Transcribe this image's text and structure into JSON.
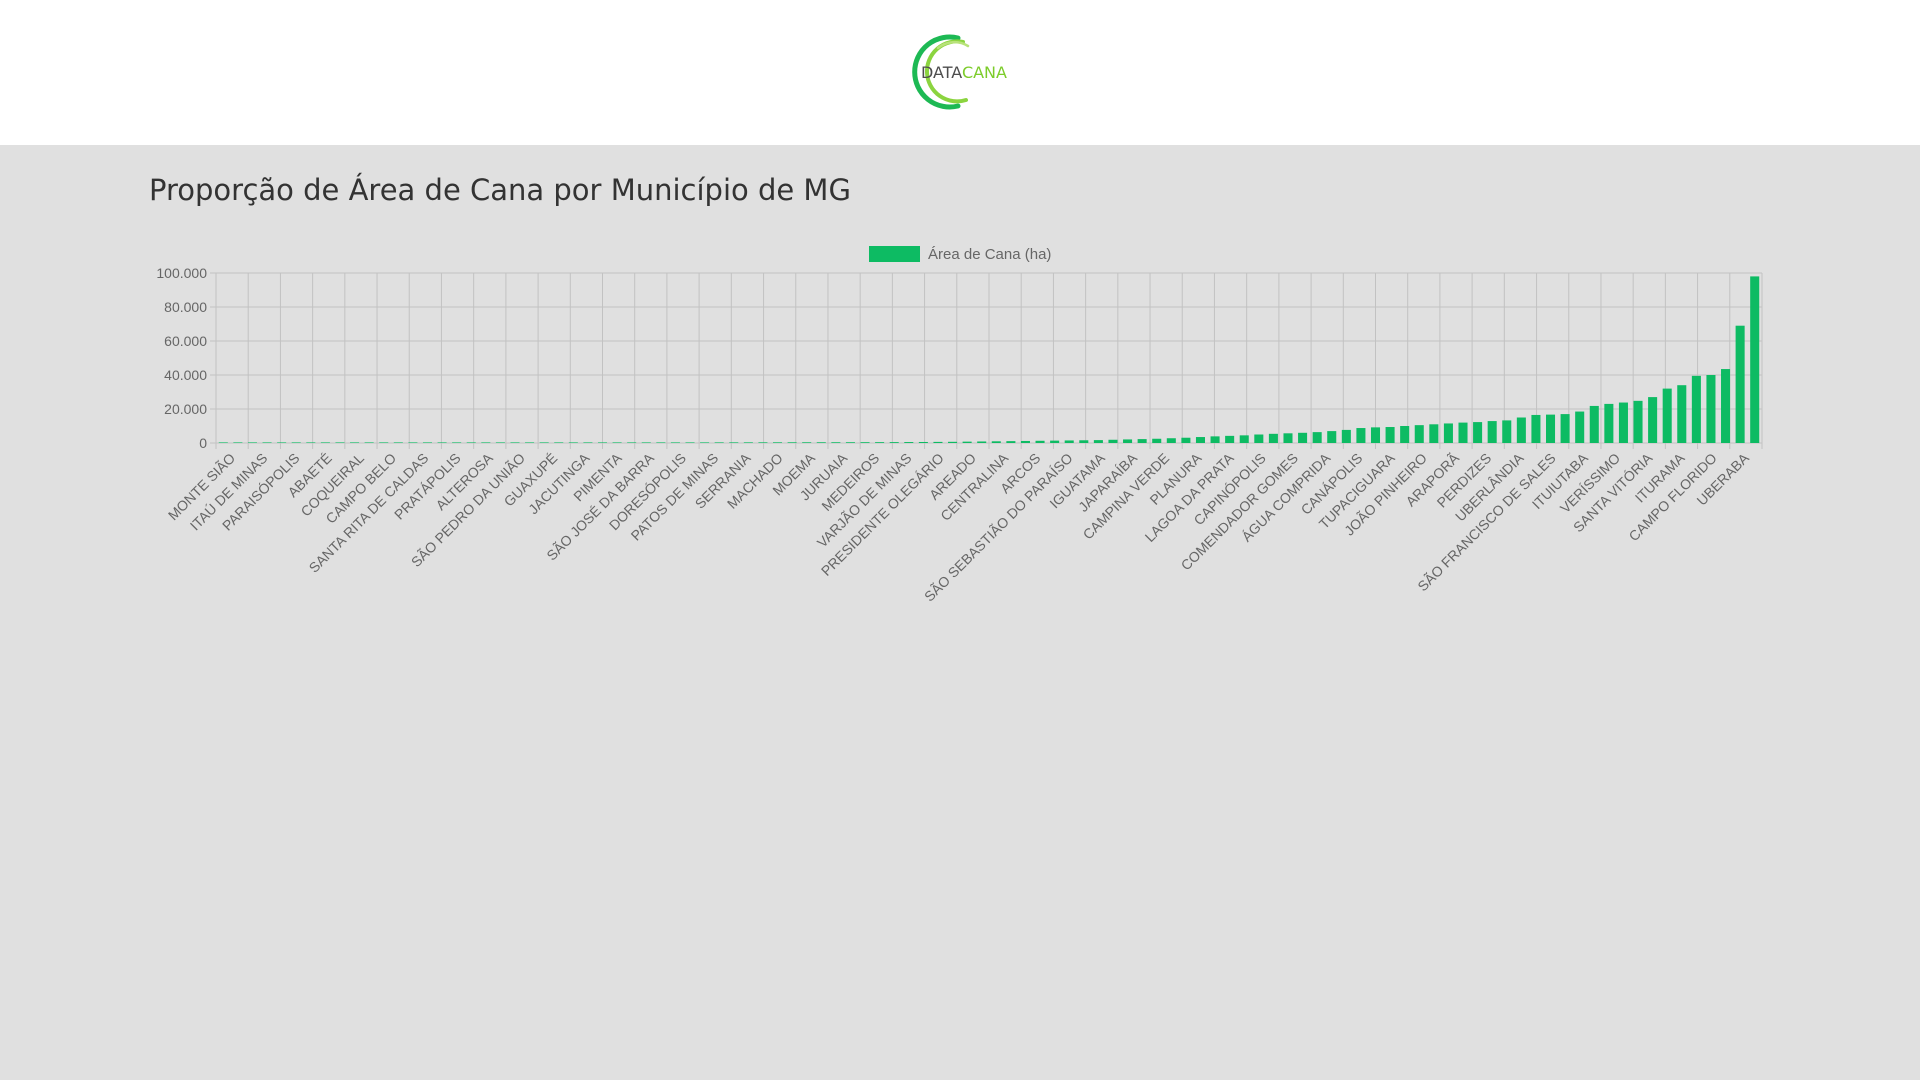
{
  "header": {
    "logo_text_1": "DATA",
    "logo_text_2": "CANA"
  },
  "page": {
    "title": "Proporção de Área de Cana por Município de MG"
  },
  "colors": {
    "bar": "#0dbb63",
    "logo_green_dark": "#1db954",
    "logo_green_light": "#8bd43f",
    "background": "#e0e0e0",
    "grid": "#c2c2c2",
    "axis_text": "#666666"
  },
  "chart_data": {
    "type": "bar",
    "legend": {
      "label": "Área de Cana (ha)",
      "position": "top"
    },
    "ylim": [
      0,
      100000
    ],
    "yticks": [
      0,
      20000,
      40000,
      60000,
      80000,
      100000
    ],
    "ytick_labels": [
      "0",
      "20.000",
      "40.000",
      "60.000",
      "80.000",
      "100.000"
    ],
    "grid": true,
    "labels_shown": [
      "MONTE SIÃO",
      "ITAÚ DE MINAS",
      "PARAISÓPOLIS",
      "ABAETÉ",
      "COQUEIRAL",
      "CAMPO BELO",
      "SANTA RITA DE CALDAS",
      "PRATÁPOLIS",
      "ALTEROSA",
      "SÃO PEDRO DA UNIÃO",
      "GUAXUPÉ",
      "JACUTINGA",
      "PIMENTA",
      "SÃO JOSÉ DA BARRA",
      "DORESÓPOLIS",
      "PATOS DE MINAS",
      "SERRANIA",
      "MACHADO",
      "MOEMA",
      "JURUAIA",
      "MEDEIROS",
      "VARJÃO DE MINAS",
      "PRESIDENTE OLEGÁRIO",
      "AREADO",
      "CENTRALINA",
      "ARCOS",
      "SÃO SEBASTIÃO DO PARAÍSO",
      "IGUATAMA",
      "JAPARAÍBA",
      "CAMPINA VERDE",
      "PLANURA",
      "LAGOA DA PRATA",
      "CAPINÓPOLIS",
      "COMENDADOR GOMES",
      "ÁGUA COMPRIDA",
      "CANÁPOLIS",
      "TUPACIGUARA",
      "JOÃO PINHEIRO",
      "ARAPORÃ",
      "PERDIZES",
      "UBERLÂNDIA",
      "SÃO FRANCISCO DE SALES",
      "ITUIUTABA",
      "VERÍSSIMO",
      "SANTA VITÓRIA",
      "ITURAMA",
      "CAMPO FLORIDO",
      "UBERABA"
    ],
    "values": [
      30,
      40,
      50,
      60,
      70,
      80,
      90,
      100,
      110,
      120,
      130,
      140,
      150,
      160,
      170,
      180,
      190,
      200,
      210,
      220,
      230,
      240,
      250,
      260,
      270,
      280,
      290,
      300,
      310,
      320,
      330,
      340,
      350,
      360,
      370,
      380,
      390,
      400,
      410,
      420,
      430,
      440,
      450,
      460,
      480,
      500,
      520,
      560,
      600,
      650,
      700,
      800,
      900,
      1000,
      1100,
      1200,
      1300,
      1400,
      1500,
      1600,
      1700,
      1900,
      2100,
      2300,
      2500,
      2800,
      3100,
      3500,
      3900,
      4200,
      4500,
      5000,
      5400,
      5700,
      6000,
      6400,
      7000,
      7700,
      8800,
      9200,
      9400,
      10000,
      10500,
      11000,
      11500,
      12000,
      12300,
      12900,
      13300,
      15000,
      16500,
      16700,
      17000,
      18500,
      21800,
      23000,
      23800,
      24800,
      27000,
      32000,
      34000,
      39500,
      40000,
      43500,
      69000,
      98000
    ]
  }
}
